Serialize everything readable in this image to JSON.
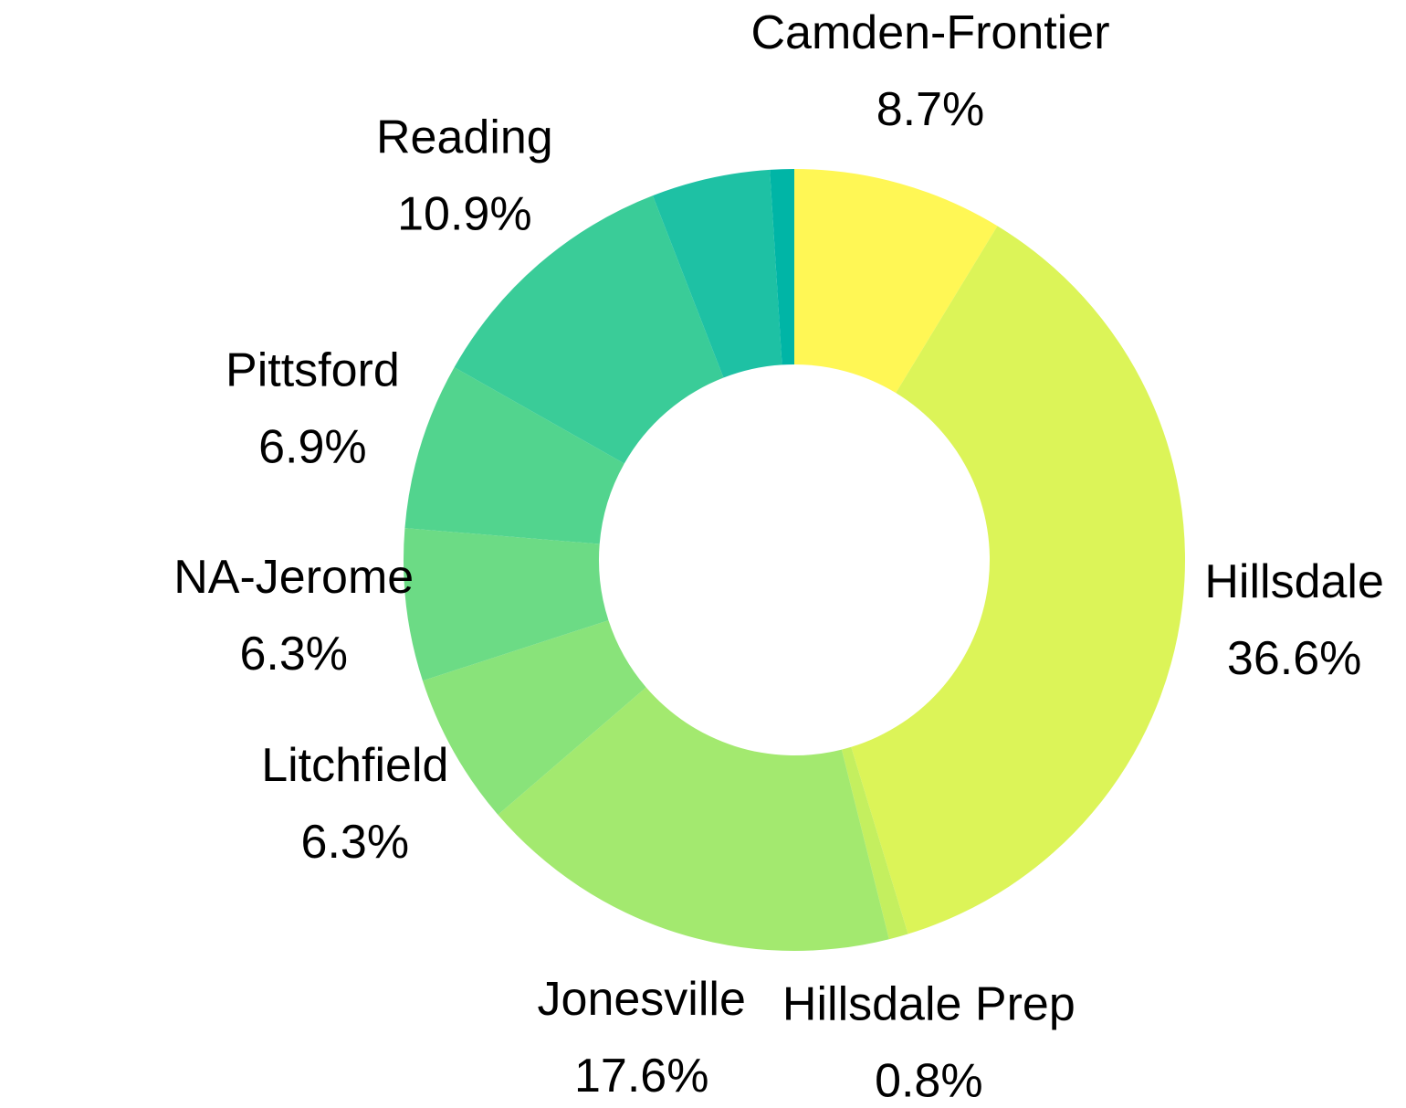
{
  "chart_data": {
    "type": "donut",
    "categories": [
      "Camden-Frontier",
      "Hillsdale",
      "Hillsdale Prep",
      "Jonesville",
      "Litchfield",
      "NA-Jerome",
      "Pittsford",
      "Reading",
      null,
      null
    ],
    "values": [
      8.7,
      36.6,
      0.8,
      17.6,
      6.3,
      6.3,
      6.9,
      10.9,
      4.9,
      1.0
    ],
    "value_labels": [
      "8.7%",
      "36.6%",
      "0.8%",
      "17.6%",
      "6.3%",
      "6.3%",
      "6.9%",
      "10.9%",
      null,
      null
    ],
    "colors": [
      "#fff755",
      "#dcf458",
      "#c4ef5f",
      "#a3e96f",
      "#89e37a",
      "#6cdb85",
      "#52d48e",
      "#3acc98",
      "#1ec1a4",
      "#00b5a6"
    ]
  }
}
